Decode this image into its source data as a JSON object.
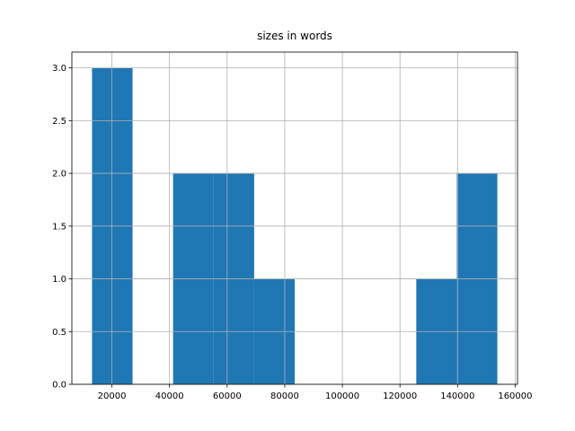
{
  "chart_data": {
    "type": "histogram",
    "title": "sizes in words",
    "bins": [
      13100,
      27170,
      41240,
      55310,
      69380,
      83450,
      97520,
      111590,
      125660,
      139730,
      153800
    ],
    "values": [
      3,
      0,
      2,
      2,
      1,
      0,
      0,
      0,
      1,
      2
    ],
    "color": "#1f77b4",
    "xlim": [
      6100,
      160800
    ],
    "xticks": [
      20000,
      40000,
      60000,
      80000,
      100000,
      120000,
      140000,
      160000
    ],
    "ylim": [
      0,
      3.15
    ],
    "yticks": [
      {
        "value": 0,
        "label": "0.0"
      },
      0.5,
      {
        "value": 1,
        "label": "1.0"
      },
      1.5,
      {
        "value": 2,
        "label": "2.0"
      },
      2.5,
      {
        "value": 3,
        "label": "3.0"
      }
    ],
    "grid": true
  }
}
